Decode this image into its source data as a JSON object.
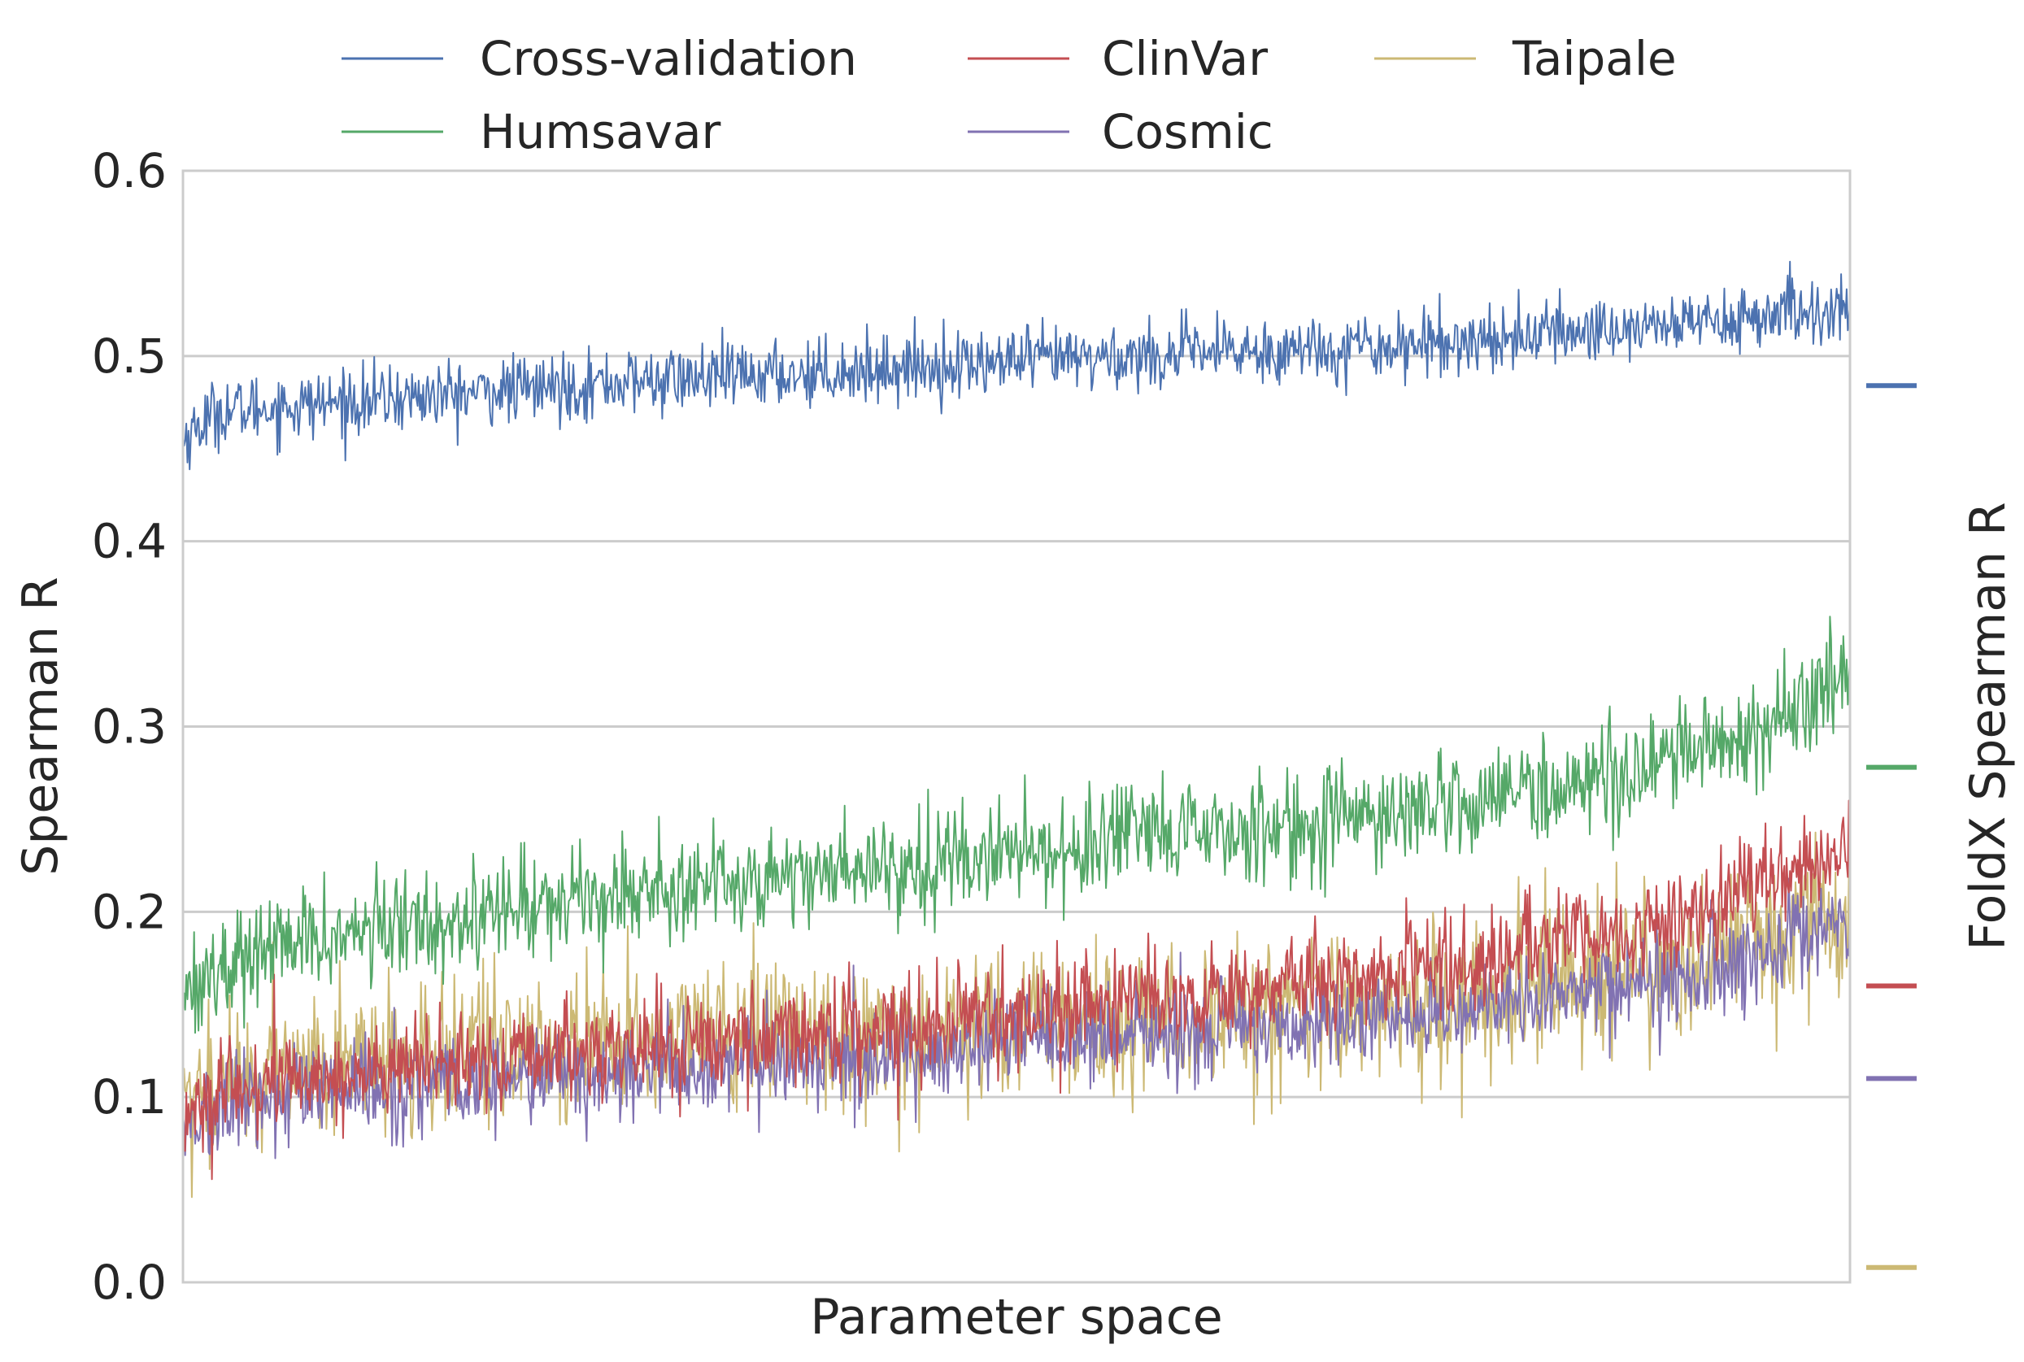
{
  "chart_data": {
    "type": "line",
    "xlabel": "Parameter space",
    "ylabel": "Spearman R",
    "y2label": "FoldX Spearman R",
    "ylim": [
      0.0,
      0.6
    ],
    "yticks": [
      "0.0",
      "0.1",
      "0.2",
      "0.3",
      "0.4",
      "0.5",
      "0.6"
    ],
    "x_points": 1500,
    "grid": "horizontal",
    "legend_position": "top",
    "series": [
      {
        "name": "Cross-validation",
        "color": "#4c72b0",
        "trend_x": [
          0,
          0.02,
          0.25,
          0.5,
          0.75,
          1.0
        ],
        "trend_y": [
          0.455,
          0.47,
          0.485,
          0.497,
          0.507,
          0.525
        ],
        "noise": 0.009,
        "foldx_value": 0.484
      },
      {
        "name": "Humsavar",
        "color": "#55a868",
        "trend_x": [
          0,
          0.05,
          0.25,
          0.5,
          0.7,
          0.85,
          0.95,
          1.0
        ],
        "trend_y": [
          0.16,
          0.18,
          0.21,
          0.232,
          0.25,
          0.272,
          0.3,
          0.33
        ],
        "noise": 0.014,
        "foldx_value": 0.278
      },
      {
        "name": "ClinVar",
        "color": "#c44e52",
        "trend_x": [
          0,
          0.05,
          0.25,
          0.5,
          0.75,
          0.9,
          1.0
        ],
        "trend_y": [
          0.09,
          0.108,
          0.125,
          0.145,
          0.17,
          0.195,
          0.235
        ],
        "noise": 0.013,
        "foldx_value": 0.16
      },
      {
        "name": "Cosmic",
        "color": "#8172b2",
        "trend_x": [
          0,
          0.05,
          0.25,
          0.5,
          0.75,
          0.9,
          1.0
        ],
        "trend_y": [
          0.085,
          0.1,
          0.112,
          0.128,
          0.145,
          0.165,
          0.195
        ],
        "noise": 0.013,
        "foldx_value": 0.11
      },
      {
        "name": "Taipale",
        "color": "#ccb974",
        "trend_x": [
          0,
          0.05,
          0.25,
          0.5,
          0.75,
          0.9,
          1.0
        ],
        "trend_y": [
          0.1,
          0.115,
          0.13,
          0.14,
          0.15,
          0.17,
          0.205
        ],
        "noise": 0.02,
        "foldx_value": 0.008
      }
    ]
  }
}
